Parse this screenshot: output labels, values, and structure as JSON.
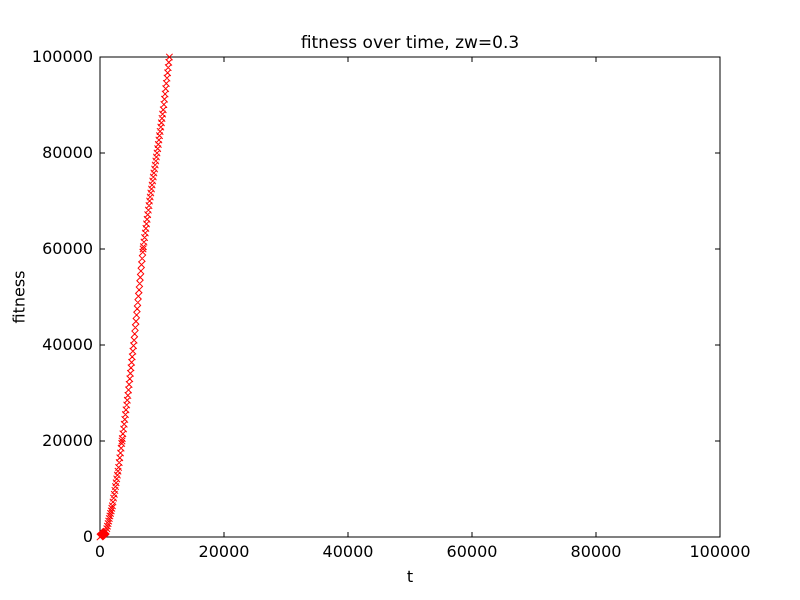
{
  "chart_data": {
    "type": "scatter",
    "title": "fitness over time, zw=0.3",
    "xlabel": "t",
    "ylabel": "fitness",
    "xlim": [
      0,
      100000
    ],
    "ylim": [
      0,
      100000
    ],
    "xticks": [
      0,
      20000,
      40000,
      60000,
      80000,
      100000
    ],
    "yticks": [
      0,
      20000,
      40000,
      60000,
      80000,
      100000
    ],
    "grid": false,
    "legend": "none",
    "tick_direction": "in",
    "axis_color": "#000000",
    "marker": {
      "shape": "x",
      "color": "#ff0000",
      "size": 7
    },
    "series": [
      {
        "name": "fitness",
        "points": [
          [
            0,
            0
          ],
          [
            100,
            120
          ],
          [
            200,
            240
          ],
          [
            300,
            360
          ],
          [
            400,
            480
          ],
          [
            500,
            600
          ],
          [
            600,
            720
          ],
          [
            700,
            840
          ],
          [
            800,
            960
          ],
          [
            900,
            1080
          ],
          [
            1000,
            1200
          ],
          [
            1100,
            1730
          ],
          [
            1200,
            2260
          ],
          [
            1300,
            2790
          ],
          [
            1400,
            3320
          ],
          [
            1500,
            3850
          ],
          [
            1600,
            4380
          ],
          [
            1700,
            4910
          ],
          [
            1800,
            5440
          ],
          [
            1900,
            5970
          ],
          [
            2000,
            6500
          ],
          [
            2100,
            7300
          ],
          [
            2200,
            8100
          ],
          [
            2300,
            8900
          ],
          [
            2400,
            9700
          ],
          [
            2500,
            10500
          ],
          [
            2600,
            11300
          ],
          [
            2700,
            12100
          ],
          [
            2800,
            12900
          ],
          [
            2900,
            13700
          ],
          [
            3000,
            14500
          ],
          [
            3100,
            15500
          ],
          [
            3200,
            16500
          ],
          [
            3300,
            17500
          ],
          [
            3400,
            18500
          ],
          [
            3500,
            19500
          ],
          [
            3550,
            20000
          ],
          [
            3600,
            20500
          ],
          [
            3700,
            21500
          ],
          [
            3800,
            22500
          ],
          [
            3900,
            23500
          ],
          [
            4000,
            24500
          ],
          [
            4100,
            25500
          ],
          [
            4200,
            26500
          ],
          [
            4300,
            27500
          ],
          [
            4400,
            28500
          ],
          [
            4500,
            29500
          ],
          [
            4600,
            30650
          ],
          [
            4700,
            31800
          ],
          [
            4800,
            32950
          ],
          [
            4900,
            34100
          ],
          [
            5000,
            35250
          ],
          [
            5100,
            36400
          ],
          [
            5200,
            37550
          ],
          [
            5300,
            38700
          ],
          [
            5400,
            39850
          ],
          [
            5500,
            41000
          ],
          [
            5600,
            42310
          ],
          [
            5700,
            43620
          ],
          [
            5800,
            44930
          ],
          [
            5900,
            46240
          ],
          [
            6000,
            47550
          ],
          [
            6100,
            48860
          ],
          [
            6200,
            50170
          ],
          [
            6300,
            51480
          ],
          [
            6400,
            52790
          ],
          [
            6500,
            54100
          ],
          [
            6600,
            55410
          ],
          [
            6700,
            56720
          ],
          [
            6800,
            58030
          ],
          [
            6900,
            59340
          ],
          [
            6950,
            60000
          ],
          [
            7000,
            60476
          ],
          [
            7100,
            61429
          ],
          [
            7200,
            62381
          ],
          [
            7300,
            63333
          ],
          [
            7400,
            64286
          ],
          [
            7500,
            65238
          ],
          [
            7600,
            66190
          ],
          [
            7700,
            67143
          ],
          [
            7800,
            68095
          ],
          [
            7900,
            69048
          ],
          [
            8000,
            70000
          ],
          [
            8100,
            70833
          ],
          [
            8200,
            71667
          ],
          [
            8300,
            72500
          ],
          [
            8400,
            73333
          ],
          [
            8500,
            74167
          ],
          [
            8600,
            75000
          ],
          [
            8700,
            75833
          ],
          [
            8800,
            76667
          ],
          [
            8900,
            77500
          ],
          [
            9000,
            78333
          ],
          [
            9100,
            79167
          ],
          [
            9200,
            80000
          ],
          [
            9300,
            80900
          ],
          [
            9400,
            81800
          ],
          [
            9500,
            82700
          ],
          [
            9600,
            83600
          ],
          [
            9700,
            84500
          ],
          [
            9800,
            85400
          ],
          [
            9900,
            86300
          ],
          [
            10000,
            87200
          ],
          [
            10100,
            88100
          ],
          [
            10200,
            89000
          ],
          [
            10300,
            90100
          ],
          [
            10400,
            91200
          ],
          [
            10500,
            92300
          ],
          [
            10600,
            93400
          ],
          [
            10700,
            94500
          ],
          [
            10800,
            95600
          ],
          [
            10900,
            96700
          ],
          [
            11000,
            97800
          ],
          [
            11100,
            98900
          ],
          [
            11200,
            100000
          ]
        ]
      }
    ]
  }
}
